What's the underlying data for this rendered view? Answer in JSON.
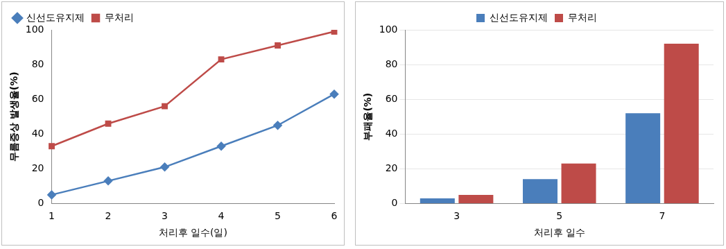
{
  "chart_data": [
    {
      "type": "line",
      "x_label": "처리후 일수(일)",
      "y_label": "무름증상 발생율(%)",
      "categories": [
        "1",
        "2",
        "3",
        "4",
        "5",
        "6"
      ],
      "series": [
        {
          "name": "신선도유지제",
          "color": "#4a7ebb",
          "marker": "diamond",
          "values": [
            5,
            13,
            21,
            33,
            45,
            63
          ]
        },
        {
          "name": "무처리",
          "color": "#be4b48",
          "marker": "square",
          "values": [
            33,
            46,
            56,
            83,
            91,
            99
          ]
        }
      ],
      "ylim": [
        0,
        100
      ],
      "yticks": [
        0,
        20,
        40,
        60,
        80,
        100
      ],
      "grid": false,
      "legend": "upper-left"
    },
    {
      "type": "bar",
      "x_label": "처리후 일수",
      "y_label": "부패율(%)",
      "categories": [
        "3",
        "5",
        "7"
      ],
      "series": [
        {
          "name": "신선도유지제",
          "color": "#4a7ebb",
          "values": [
            3,
            14,
            52
          ]
        },
        {
          "name": "무처리",
          "color": "#be4b48",
          "values": [
            5,
            23,
            92
          ]
        }
      ],
      "ylim": [
        0,
        100
      ],
      "yticks": [
        0,
        20,
        40,
        60,
        80,
        100
      ],
      "grid": true,
      "legend": "upper-center"
    }
  ]
}
